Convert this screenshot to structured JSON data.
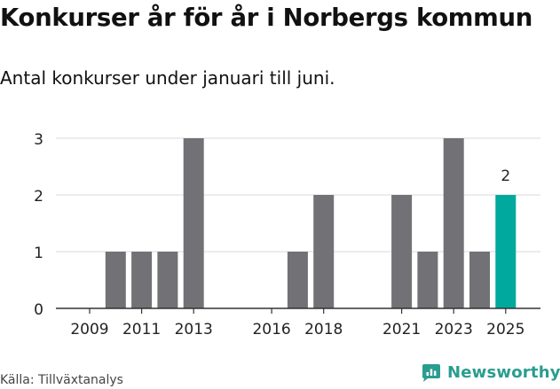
{
  "header": {
    "title": "Konkurser år för år i Norbergs kommun",
    "subtitle": "Antal konkurser under januari till juni."
  },
  "footer": {
    "source": "Källa: Tillväxtanalys",
    "brand": "Newsworthy"
  },
  "colors": {
    "bar": "#727175",
    "highlight": "#00a99d",
    "grid": "#d9d9d9",
    "axis": "#333333",
    "brand": "#2a9d8f"
  },
  "chart_data": {
    "type": "bar",
    "categories": [
      "2009",
      "2010",
      "2011",
      "2012",
      "2013",
      "2014",
      "2015",
      "2016",
      "2017",
      "2018",
      "2019",
      "2020",
      "2021",
      "2022",
      "2023",
      "2024",
      "2025"
    ],
    "values": [
      0,
      1,
      1,
      1,
      3,
      0,
      0,
      0,
      1,
      2,
      0,
      0,
      2,
      1,
      3,
      1,
      2
    ],
    "xtick_labels": [
      "2009",
      "2011",
      "2013",
      "2016",
      "2018",
      "2021",
      "2023",
      "2025"
    ],
    "ylim": [
      0,
      3
    ],
    "yticks": [
      0,
      1,
      2,
      3
    ],
    "highlight_category": "2025",
    "annotations": [
      {
        "category": "2025",
        "text": "2"
      }
    ],
    "grid": true,
    "xlabel": "",
    "ylabel": ""
  }
}
